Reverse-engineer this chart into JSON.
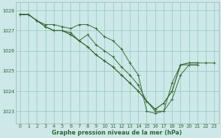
{
  "title": "Graphe pression niveau de la mer (hPa)",
  "background_color": "#cce8e8",
  "grid_color": "#99ccbb",
  "line_color": "#336633",
  "xlim": [
    -0.5,
    23.5
  ],
  "ylim": [
    1022.4,
    1028.4
  ],
  "yticks": [
    1023,
    1024,
    1025,
    1026,
    1027,
    1028
  ],
  "xticks": [
    0,
    1,
    2,
    3,
    4,
    5,
    6,
    7,
    8,
    9,
    10,
    11,
    12,
    13,
    14,
    15,
    16,
    17,
    18,
    19,
    20,
    21,
    22,
    23
  ],
  "series": [
    [
      1027.8,
      1027.8,
      1027.5,
      1027.3,
      1027.3,
      1027.2,
      1027.1,
      1027.3,
      1027.3,
      1027.1,
      1026.7,
      1026.5,
      1026.1,
      1025.4,
      1024.8,
      1023.0,
      1022.9,
      1023.0,
      1024.4,
      1025.3,
      1025.3,
      1025.3,
      null,
      null
    ],
    [
      1027.8,
      1027.8,
      1027.5,
      1027.2,
      1027.0,
      1027.0,
      1026.9,
      1026.5,
      1026.8,
      1026.3,
      1026.0,
      1025.7,
      1025.2,
      1024.8,
      1024.3,
      1023.5,
      1023.0,
      1023.0,
      1023.6,
      1024.8,
      1025.3,
      1025.3,
      null,
      null
    ],
    [
      1027.8,
      1027.8,
      1027.5,
      1027.2,
      1027.0,
      1027.0,
      1026.8,
      1026.5,
      1026.2,
      1025.8,
      1025.5,
      1025.2,
      1024.8,
      1024.4,
      1024.0,
      1023.5,
      1023.1,
      1023.4,
      1024.0,
      1025.3,
      1025.4,
      1025.4,
      null,
      null
    ],
    [
      1027.8,
      1027.8,
      1027.5,
      1027.2,
      1027.0,
      1027.0,
      1026.8,
      1026.5,
      1026.2,
      1025.8,
      1025.5,
      1025.2,
      1024.8,
      1024.4,
      1024.0,
      1023.5,
      1023.1,
      1023.4,
      1024.0,
      1025.3,
      1025.4,
      1025.4,
      1025.4,
      1025.4
    ]
  ],
  "title_fontsize": 6,
  "tick_fontsize": 5,
  "xlabel_fontsize": 6
}
